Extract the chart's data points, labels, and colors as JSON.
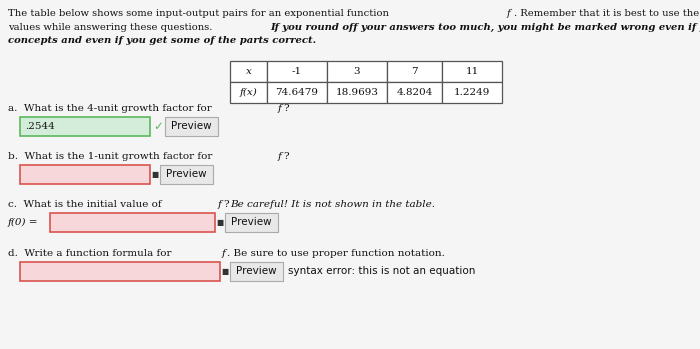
{
  "content_bg": "#f5f5f5",
  "table_x": [
    "x",
    "-1",
    "3",
    "7",
    "11"
  ],
  "table_fx": [
    "f(x)",
    "74.6479",
    "18.9693",
    "4.8204",
    "1.2249"
  ],
  "answer_a": ".2544",
  "fc_label": "f(0) =",
  "preview_btn": "Preview",
  "syntax_error": "syntax error: this is not an equation",
  "input_bg_correct": "#d4edda",
  "input_border_correct": "#5cb85c",
  "input_bg_wrong": "#f8d7da",
  "input_border_wrong": "#d9534f",
  "preview_btn_color": "#e8e8e8",
  "preview_btn_border": "#aaaaaa",
  "table_border": "#555555",
  "text_color": "#111111"
}
